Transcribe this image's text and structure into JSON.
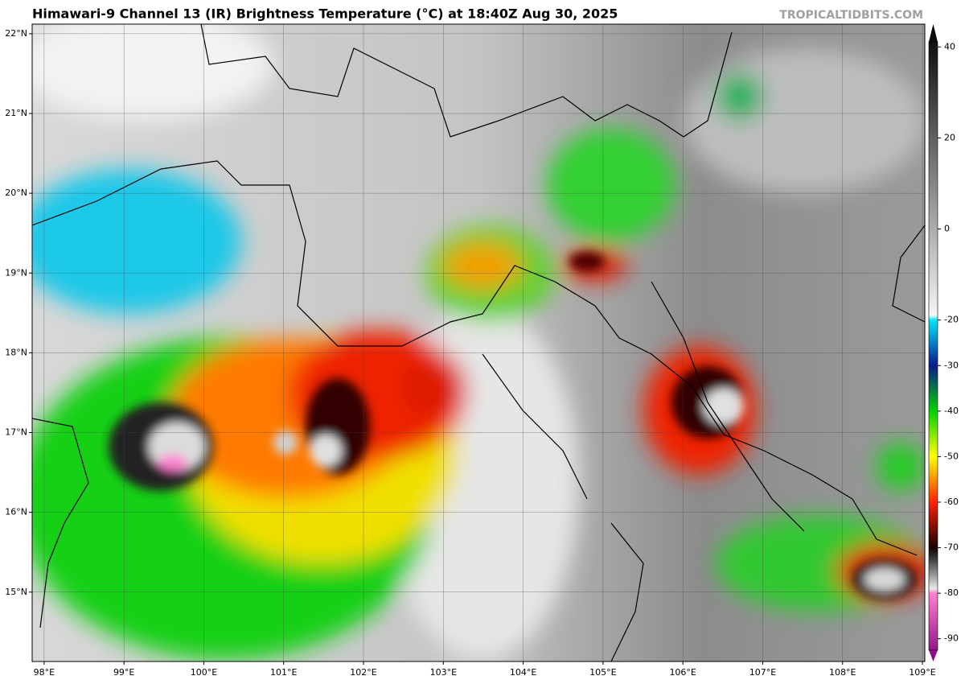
{
  "header": {
    "title": "Himawari-9 Channel 13 (IR) Brightness Temperature (°C) at 18:40Z Aug 30, 2025",
    "source": "TROPICALTIDBITS.COM"
  },
  "map": {
    "lonlim": [
      97.85,
      109.03
    ],
    "latlim": [
      14.13,
      22.12
    ],
    "lonticks": [
      {
        "value": 98,
        "label": "98°E"
      },
      {
        "value": 99,
        "label": "99°E"
      },
      {
        "value": 100,
        "label": "100°E"
      },
      {
        "value": 101,
        "label": "101°E"
      },
      {
        "value": 102,
        "label": "102°E"
      },
      {
        "value": 103,
        "label": "103°E"
      },
      {
        "value": 104,
        "label": "104°E"
      },
      {
        "value": 105,
        "label": "105°E"
      },
      {
        "value": 106,
        "label": "106°E"
      },
      {
        "value": 107,
        "label": "107°E"
      },
      {
        "value": 108,
        "label": "108°E"
      },
      {
        "value": 109,
        "label": "109°E"
      }
    ],
    "latticks": [
      {
        "value": 15,
        "label": "15°N"
      },
      {
        "value": 16,
        "label": "16°N"
      },
      {
        "value": 17,
        "label": "17°N"
      },
      {
        "value": 18,
        "label": "18°N"
      },
      {
        "value": 19,
        "label": "19°N"
      },
      {
        "value": 20,
        "label": "20°N"
      },
      {
        "value": 21,
        "label": "21°N"
      },
      {
        "value": 22,
        "label": "22°N"
      }
    ]
  },
  "colorbar": {
    "lim": [
      -95,
      45
    ],
    "ticks": [
      40,
      20,
      0,
      -20,
      -30,
      -40,
      -50,
      -60,
      -70,
      -80,
      -90
    ],
    "stops": [
      [
        45,
        "#000000"
      ],
      [
        20,
        "#606060"
      ],
      [
        -19,
        "#f5f5f5"
      ],
      [
        -20,
        "#00e5ff"
      ],
      [
        -30,
        "#0a1a8c"
      ],
      [
        -40,
        "#00d200"
      ],
      [
        -50,
        "#ffff00"
      ],
      [
        -60,
        "#ff2000"
      ],
      [
        -70,
        "#1a0000"
      ],
      [
        -72,
        "#303030"
      ],
      [
        -79,
        "#e8e8e8"
      ],
      [
        -80,
        "#ff80d0"
      ],
      [
        -95,
        "#800080"
      ]
    ]
  }
}
